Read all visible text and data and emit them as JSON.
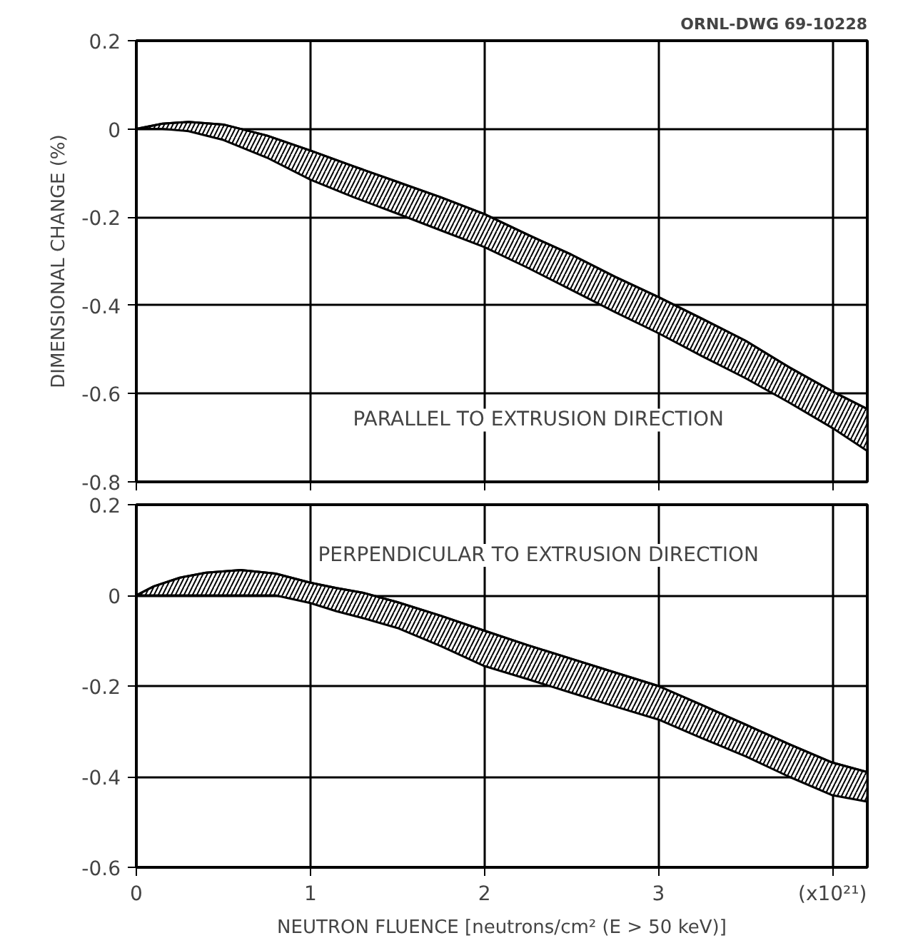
{
  "chart_data": [
    {
      "type": "line",
      "title": "ORNL-DWG 69-10228",
      "ylabel": "DIMENSIONAL CHANGE (%)",
      "annotations": [
        "PARALLEL TO EXTRUSION DIRECTION"
      ],
      "xlim": [
        0,
        4.2
      ],
      "xticks": [
        0,
        1,
        2,
        3,
        4
      ],
      "ylim": [
        -0.8,
        0.2
      ],
      "yticks": [
        -0.8,
        -0.6,
        -0.4,
        -0.2,
        0,
        0.2
      ],
      "grid": true,
      "tick_labels": "y",
      "color": "#000000",
      "x": [
        0,
        0.15,
        0.3,
        0.5,
        0.75,
        1,
        1.25,
        1.5,
        1.75,
        2,
        2.25,
        2.5,
        2.75,
        3,
        3.25,
        3.5,
        3.75,
        4,
        4.2
      ],
      "series": [
        {
          "values": [
            0,
            0.012,
            0.016,
            0.01,
            -0.015,
            -0.049,
            -0.085,
            -0.12,
            -0.155,
            -0.193,
            -0.24,
            -0.285,
            -0.335,
            -0.381,
            -0.43,
            -0.48,
            -0.54,
            -0.595,
            -0.635
          ],
          "upper": [
            0,
            0.012,
            0.016,
            0.01,
            -0.015,
            -0.049,
            -0.085,
            -0.12,
            -0.155,
            -0.193,
            -0.24,
            -0.285,
            -0.335,
            -0.381,
            -0.43,
            -0.48,
            -0.54,
            -0.595,
            -0.635
          ],
          "lower": [
            0,
            0,
            -0.005,
            -0.025,
            -0.065,
            -0.115,
            -0.155,
            -0.192,
            -0.23,
            -0.268,
            -0.315,
            -0.365,
            -0.415,
            -0.463,
            -0.515,
            -0.565,
            -0.62,
            -0.678,
            -0.73
          ]
        }
      ]
    },
    {
      "type": "line",
      "xlabel": "NEUTRON FLUENCE [neutrons/cm² (E > 50 keV)]",
      "annotations": [
        "PERPENDICULAR TO EXTRUSION DIRECTION"
      ],
      "xlim": [
        0,
        4.2
      ],
      "xticks": [
        0,
        1,
        2,
        3,
        {
          "value": 4,
          "label": "(x10²¹)"
        }
      ],
      "ylim": [
        -0.6,
        0.2
      ],
      "yticks": [
        -0.6,
        -0.4,
        -0.2,
        0,
        0.2
      ],
      "grid": true,
      "color": "#000000",
      "x": [
        0,
        0.1,
        0.25,
        0.4,
        0.6,
        0.8,
        1,
        1.15,
        1.3,
        1.5,
        1.75,
        2,
        2.25,
        2.5,
        2.75,
        3,
        3.25,
        3.5,
        3.75,
        4,
        4.2
      ],
      "series": [
        {
          "values": [
            0,
            0.02,
            0.039,
            0.05,
            0.056,
            0.048,
            0.028,
            0.016,
            0.006,
            -0.015,
            -0.045,
            -0.078,
            -0.11,
            -0.14,
            -0.17,
            -0.2,
            -0.242,
            -0.285,
            -0.328,
            -0.369,
            -0.39
          ],
          "upper": [
            0,
            0.02,
            0.039,
            0.05,
            0.056,
            0.048,
            0.028,
            0.016,
            0.006,
            -0.015,
            -0.045,
            -0.078,
            -0.11,
            -0.14,
            -0.17,
            -0.2,
            -0.242,
            -0.285,
            -0.328,
            -0.369,
            -0.39
          ],
          "lower": [
            0,
            0,
            0,
            0,
            0,
            0,
            -0.017,
            -0.035,
            -0.05,
            -0.072,
            -0.112,
            -0.156,
            -0.185,
            -0.215,
            -0.245,
            -0.274,
            -0.315,
            -0.355,
            -0.4,
            -0.441,
            -0.455
          ]
        }
      ]
    }
  ]
}
